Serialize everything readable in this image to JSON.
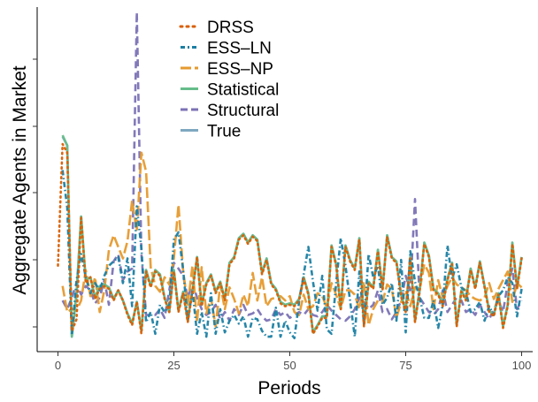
{
  "chart_data": {
    "type": "line",
    "title": "",
    "xlabel": "Periods",
    "ylabel": "Aggregate Agents in Market",
    "xlim": [
      0,
      100
    ],
    "xticks": [
      0,
      25,
      50,
      75,
      100
    ],
    "grid": false,
    "legend_position": "top-center",
    "series": [
      {
        "name": "DRSS",
        "color": "#d95f02",
        "dash": "dotted",
        "values": [
          52,
          136,
          130,
          7,
          15,
          85,
          40,
          44,
          29,
          36,
          38,
          36,
          28,
          35,
          28,
          18,
          11,
          27,
          5,
          48,
          37,
          48,
          45,
          29,
          20,
          48,
          20,
          33,
          13,
          34,
          58,
          24,
          39,
          45,
          33,
          40,
          28,
          53,
          57,
          70,
          73,
          67,
          72,
          69,
          46,
          56,
          39,
          35,
          26,
          24,
          25,
          24,
          28,
          43,
          32,
          5,
          10,
          16,
          16,
          65,
          52,
          22,
          65,
          55,
          49,
          70,
          10,
          40,
          36,
          62,
          35,
          72,
          57,
          54,
          31,
          20,
          57,
          13,
          34,
          67,
          58,
          35,
          32,
          24,
          42,
          53,
          10,
          34,
          28,
          49,
          36,
          54,
          37,
          20,
          17,
          32,
          9,
          24,
          67,
          36,
          57
        ]
      },
      {
        "name": "ESS–LN",
        "color": "#1b7fa3",
        "dash": "dashdot",
        "values": [
          null,
          118,
          92,
          4,
          42,
          60,
          44,
          33,
          40,
          35,
          45,
          52,
          55,
          58,
          40,
          57,
          24,
          93,
          64,
          13,
          20,
          5,
          25,
          20,
          25,
          70,
          75,
          49,
          14,
          35,
          5,
          20,
          3,
          33,
          5,
          22,
          6,
          14,
          18,
          12,
          17,
          3,
          16,
          15,
          7,
          3,
          3,
          23,
          3,
          14,
          6,
          2,
          27,
          46,
          65,
          41,
          21,
          45,
          8,
          5,
          40,
          71,
          52,
          28,
          3,
          48,
          12,
          60,
          44,
          52,
          25,
          30,
          40,
          14,
          56,
          6,
          62,
          41,
          30,
          16,
          16,
          28,
          9,
          25,
          66,
          43,
          53,
          37,
          34,
          20,
          22,
          27,
          14,
          24,
          18,
          31,
          35,
          44,
          40,
          17,
          36
        ]
      },
      {
        "name": "ESS–NP",
        "color": "#e69a2e",
        "dash": "longdash",
        "values": [
          null,
          38,
          20,
          22,
          21,
          28,
          49,
          31,
          44,
          20,
          35,
          63,
          73,
          65,
          57,
          69,
          97,
          76,
          130,
          117,
          51,
          38,
          34,
          44,
          39,
          57,
          94,
          48,
          25,
          52,
          13,
          51,
          19,
          30,
          10,
          39,
          22,
          37,
          29,
          19,
          32,
          24,
          47,
          28,
          44,
          24,
          29,
          30,
          31,
          28,
          31,
          20,
          18,
          32,
          22,
          24,
          33,
          31,
          23,
          40,
          32,
          22,
          35,
          35,
          32,
          22,
          41,
          11,
          22,
          28,
          27,
          39,
          36,
          16,
          27,
          35,
          24,
          37,
          35,
          53,
          47,
          22,
          42,
          30,
          38,
          44,
          39,
          37,
          35,
          31,
          29,
          28,
          30,
          40,
          29,
          36,
          42,
          48,
          27,
          40,
          37
        ]
      },
      {
        "name": "Statistical",
        "color": "#66bd8a",
        "dash": "solid",
        "values": [
          null,
          142,
          135,
          3,
          33,
          86,
          42,
          44,
          30,
          38,
          39,
          37,
          29,
          35,
          28,
          19,
          12,
          27,
          7,
          49,
          38,
          49,
          46,
          30,
          20,
          49,
          21,
          34,
          14,
          35,
          58,
          25,
          40,
          46,
          34,
          41,
          29,
          54,
          58,
          71,
          74,
          68,
          73,
          70,
          47,
          57,
          40,
          36,
          27,
          25,
          26,
          25,
          29,
          44,
          33,
          6,
          11,
          17,
          17,
          66,
          53,
          23,
          66,
          56,
          50,
          71,
          11,
          41,
          37,
          63,
          36,
          73,
          58,
          55,
          32,
          21,
          58,
          14,
          35,
          68,
          59,
          36,
          33,
          25,
          43,
          54,
          11,
          35,
          29,
          50,
          37,
          55,
          38,
          21,
          18,
          33,
          10,
          25,
          68,
          37,
          58
        ]
      },
      {
        "name": "Structural",
        "color": "#7b72b5",
        "dash": "dashed",
        "values": [
          null,
          28,
          22,
          30,
          40,
          32,
          38,
          35,
          26,
          30,
          42,
          25,
          55,
          60,
          42,
          48,
          50,
          227,
          60,
          18,
          18,
          18,
          22,
          16,
          35,
          54,
          50,
          45,
          30,
          40,
          30,
          22,
          18,
          20,
          25,
          15,
          20,
          14,
          22,
          18,
          25,
          18,
          19,
          22,
          17,
          14,
          15,
          22,
          18,
          20,
          16,
          18,
          20,
          18,
          22,
          18,
          17,
          20,
          25,
          21,
          18,
          15,
          14,
          17,
          22,
          30,
          28,
          22,
          25,
          35,
          20,
          22,
          15,
          20,
          28,
          45,
          35,
          98,
          30,
          25,
          20,
          18,
          22,
          35,
          20,
          25,
          30,
          28,
          20,
          22,
          18,
          25,
          20,
          15,
          22,
          28,
          20,
          40,
          50,
          22,
          28
        ]
      },
      {
        "name": "True",
        "color": "#7fa8c0",
        "dash": "solid",
        "values": [
          null,
          141,
          135,
          3,
          33,
          86,
          42,
          44,
          30,
          38,
          39,
          37,
          29,
          35,
          28,
          19,
          12,
          27,
          7,
          49,
          38,
          49,
          46,
          30,
          20,
          49,
          21,
          34,
          14,
          35,
          58,
          25,
          40,
          46,
          34,
          41,
          29,
          54,
          58,
          71,
          74,
          68,
          73,
          70,
          47,
          57,
          40,
          36,
          27,
          25,
          26,
          25,
          29,
          44,
          33,
          6,
          11,
          17,
          17,
          66,
          53,
          23,
          66,
          56,
          50,
          71,
          11,
          41,
          37,
          63,
          36,
          73,
          58,
          55,
          32,
          21,
          58,
          14,
          35,
          68,
          59,
          36,
          33,
          25,
          43,
          54,
          11,
          35,
          29,
          50,
          37,
          55,
          38,
          21,
          18,
          33,
          10,
          25,
          68,
          37,
          58
        ]
      }
    ]
  }
}
